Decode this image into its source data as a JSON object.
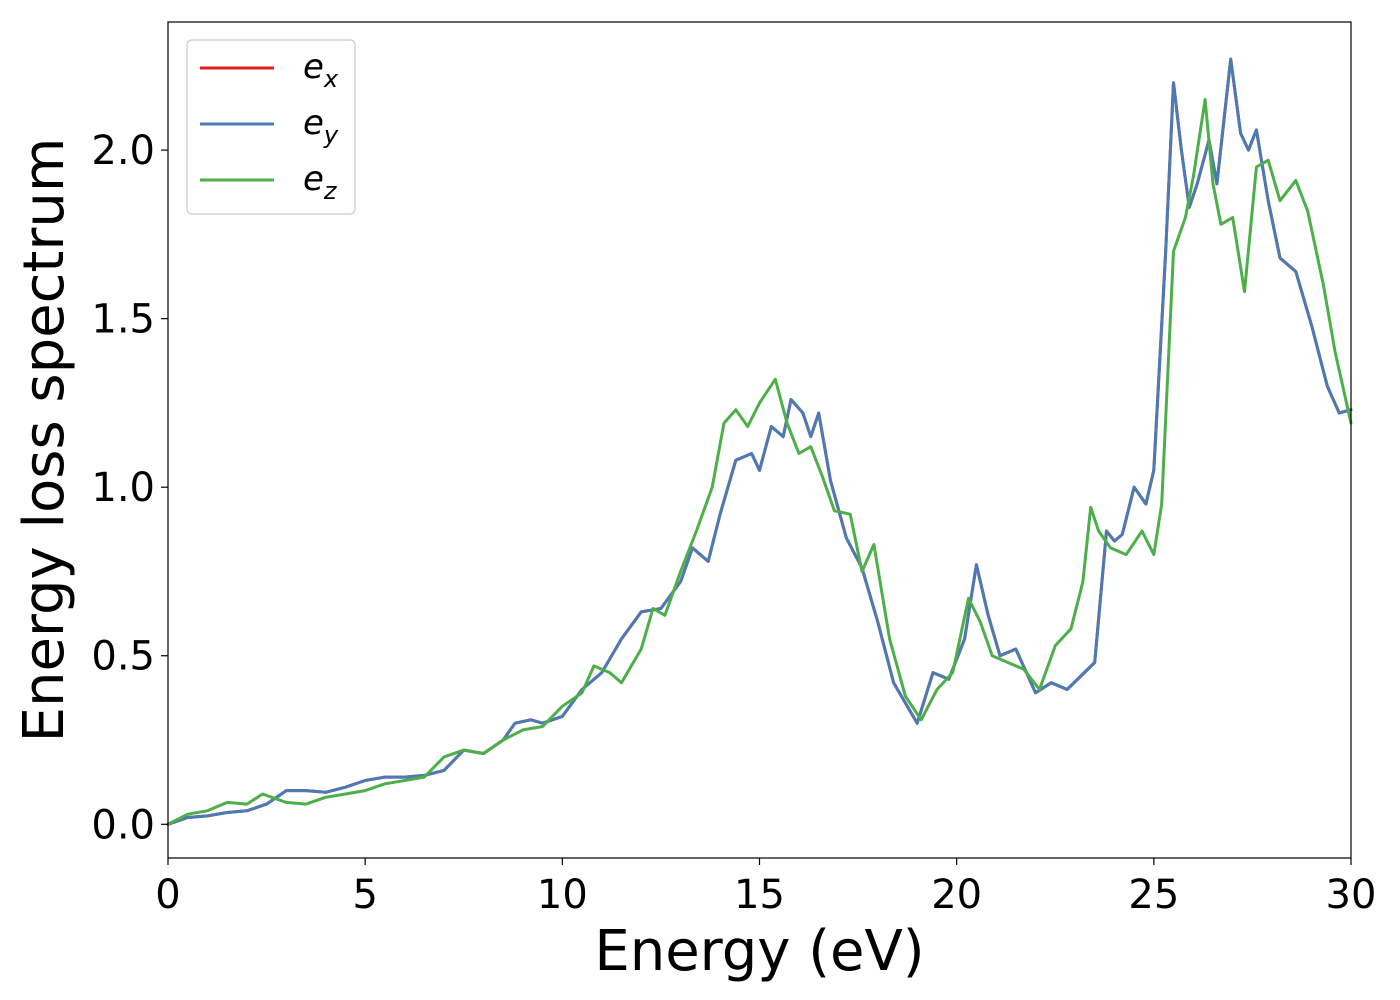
{
  "chart_data": {
    "type": "line",
    "title": "",
    "xlabel": "Energy (eV)",
    "ylabel": "Energy loss spectrum",
    "xlim": [
      0,
      30
    ],
    "ylim": [
      -0.1,
      2.38
    ],
    "xticks": [
      0,
      5,
      10,
      15,
      20,
      25,
      30
    ],
    "xtick_labels": [
      "0",
      "5",
      "10",
      "15",
      "20",
      "25",
      "30"
    ],
    "yticks": [
      0.0,
      0.5,
      1.0,
      1.5,
      2.0
    ],
    "ytick_labels": [
      "0.0",
      "0.5",
      "1.0",
      "1.5",
      "2.0"
    ],
    "grid": false,
    "legend_position": "top-left",
    "series": [
      {
        "name": "e",
        "sub": "x",
        "color": "#e41a1c",
        "points": [
          [
            0,
            0.0
          ],
          [
            0.5,
            0.02
          ],
          [
            1.0,
            0.025
          ],
          [
            1.5,
            0.035
          ],
          [
            2.0,
            0.04
          ],
          [
            2.5,
            0.06
          ],
          [
            3.0,
            0.1
          ],
          [
            3.5,
            0.1
          ],
          [
            4.0,
            0.095
          ],
          [
            4.5,
            0.11
          ],
          [
            5.0,
            0.13
          ],
          [
            5.5,
            0.14
          ],
          [
            6.0,
            0.14
          ],
          [
            6.5,
            0.145
          ],
          [
            7.0,
            0.16
          ],
          [
            7.5,
            0.22
          ],
          [
            8.0,
            0.21
          ],
          [
            8.5,
            0.25
          ],
          [
            8.8,
            0.3
          ],
          [
            9.2,
            0.31
          ],
          [
            9.5,
            0.3
          ],
          [
            10.0,
            0.32
          ],
          [
            10.5,
            0.4
          ],
          [
            11.0,
            0.45
          ],
          [
            11.5,
            0.55
          ],
          [
            12.0,
            0.63
          ],
          [
            12.5,
            0.64
          ],
          [
            13.0,
            0.72
          ],
          [
            13.3,
            0.82
          ],
          [
            13.7,
            0.78
          ],
          [
            14.0,
            0.92
          ],
          [
            14.4,
            1.08
          ],
          [
            14.8,
            1.1
          ],
          [
            15.0,
            1.05
          ],
          [
            15.3,
            1.18
          ],
          [
            15.6,
            1.15
          ],
          [
            15.8,
            1.26
          ],
          [
            16.1,
            1.22
          ],
          [
            16.3,
            1.15
          ],
          [
            16.5,
            1.22
          ],
          [
            16.8,
            1.02
          ],
          [
            17.2,
            0.85
          ],
          [
            17.6,
            0.76
          ],
          [
            18.0,
            0.6
          ],
          [
            18.4,
            0.42
          ],
          [
            19.0,
            0.3
          ],
          [
            19.4,
            0.45
          ],
          [
            19.8,
            0.43
          ],
          [
            20.2,
            0.55
          ],
          [
            20.5,
            0.77
          ],
          [
            20.8,
            0.62
          ],
          [
            21.1,
            0.5
          ],
          [
            21.5,
            0.52
          ],
          [
            22.0,
            0.39
          ],
          [
            22.4,
            0.42
          ],
          [
            22.8,
            0.4
          ],
          [
            23.5,
            0.48
          ],
          [
            23.8,
            0.87
          ],
          [
            24.0,
            0.84
          ],
          [
            24.2,
            0.86
          ],
          [
            24.5,
            1.0
          ],
          [
            24.8,
            0.95
          ],
          [
            25.0,
            1.05
          ],
          [
            25.3,
            1.7
          ],
          [
            25.5,
            2.2
          ],
          [
            25.7,
            2.0
          ],
          [
            25.9,
            1.83
          ],
          [
            26.1,
            1.9
          ],
          [
            26.4,
            2.03
          ],
          [
            26.6,
            1.9
          ],
          [
            26.95,
            2.27
          ],
          [
            27.2,
            2.05
          ],
          [
            27.4,
            2.0
          ],
          [
            27.6,
            2.06
          ],
          [
            27.9,
            1.85
          ],
          [
            28.2,
            1.68
          ],
          [
            28.6,
            1.64
          ],
          [
            29.0,
            1.48
          ],
          [
            29.4,
            1.3
          ],
          [
            29.7,
            1.22
          ],
          [
            30.0,
            1.23
          ]
        ]
      },
      {
        "name": "e",
        "sub": "y",
        "color": "#4a7bb5",
        "points": [
          [
            0,
            0.0
          ],
          [
            0.5,
            0.02
          ],
          [
            1.0,
            0.025
          ],
          [
            1.5,
            0.035
          ],
          [
            2.0,
            0.04
          ],
          [
            2.5,
            0.06
          ],
          [
            3.0,
            0.1
          ],
          [
            3.5,
            0.1
          ],
          [
            4.0,
            0.095
          ],
          [
            4.5,
            0.11
          ],
          [
            5.0,
            0.13
          ],
          [
            5.5,
            0.14
          ],
          [
            6.0,
            0.14
          ],
          [
            6.5,
            0.145
          ],
          [
            7.0,
            0.16
          ],
          [
            7.5,
            0.22
          ],
          [
            8.0,
            0.21
          ],
          [
            8.5,
            0.25
          ],
          [
            8.8,
            0.3
          ],
          [
            9.2,
            0.31
          ],
          [
            9.5,
            0.3
          ],
          [
            10.0,
            0.32
          ],
          [
            10.5,
            0.4
          ],
          [
            11.0,
            0.45
          ],
          [
            11.5,
            0.55
          ],
          [
            12.0,
            0.63
          ],
          [
            12.5,
            0.64
          ],
          [
            13.0,
            0.72
          ],
          [
            13.3,
            0.82
          ],
          [
            13.7,
            0.78
          ],
          [
            14.0,
            0.92
          ],
          [
            14.4,
            1.08
          ],
          [
            14.8,
            1.1
          ],
          [
            15.0,
            1.05
          ],
          [
            15.3,
            1.18
          ],
          [
            15.6,
            1.15
          ],
          [
            15.8,
            1.26
          ],
          [
            16.1,
            1.22
          ],
          [
            16.3,
            1.15
          ],
          [
            16.5,
            1.22
          ],
          [
            16.8,
            1.02
          ],
          [
            17.2,
            0.85
          ],
          [
            17.6,
            0.76
          ],
          [
            18.0,
            0.6
          ],
          [
            18.4,
            0.42
          ],
          [
            19.0,
            0.3
          ],
          [
            19.4,
            0.45
          ],
          [
            19.8,
            0.43
          ],
          [
            20.2,
            0.55
          ],
          [
            20.5,
            0.77
          ],
          [
            20.8,
            0.62
          ],
          [
            21.1,
            0.5
          ],
          [
            21.5,
            0.52
          ],
          [
            22.0,
            0.39
          ],
          [
            22.4,
            0.42
          ],
          [
            22.8,
            0.4
          ],
          [
            23.5,
            0.48
          ],
          [
            23.8,
            0.87
          ],
          [
            24.0,
            0.84
          ],
          [
            24.2,
            0.86
          ],
          [
            24.5,
            1.0
          ],
          [
            24.8,
            0.95
          ],
          [
            25.0,
            1.05
          ],
          [
            25.3,
            1.7
          ],
          [
            25.5,
            2.2
          ],
          [
            25.7,
            2.0
          ],
          [
            25.9,
            1.83
          ],
          [
            26.1,
            1.9
          ],
          [
            26.4,
            2.03
          ],
          [
            26.6,
            1.9
          ],
          [
            26.95,
            2.27
          ],
          [
            27.2,
            2.05
          ],
          [
            27.4,
            2.0
          ],
          [
            27.6,
            2.06
          ],
          [
            27.9,
            1.85
          ],
          [
            28.2,
            1.68
          ],
          [
            28.6,
            1.64
          ],
          [
            29.0,
            1.48
          ],
          [
            29.4,
            1.3
          ],
          [
            29.7,
            1.22
          ],
          [
            30.0,
            1.23
          ]
        ]
      },
      {
        "name": "e",
        "sub": "z",
        "color": "#4daf4a",
        "points": [
          [
            0,
            0.0
          ],
          [
            0.5,
            0.03
          ],
          [
            1.0,
            0.04
          ],
          [
            1.5,
            0.065
          ],
          [
            2.0,
            0.06
          ],
          [
            2.4,
            0.09
          ],
          [
            3.0,
            0.065
          ],
          [
            3.5,
            0.06
          ],
          [
            4.0,
            0.08
          ],
          [
            4.5,
            0.09
          ],
          [
            5.0,
            0.1
          ],
          [
            5.5,
            0.12
          ],
          [
            6.0,
            0.13
          ],
          [
            6.5,
            0.14
          ],
          [
            7.0,
            0.2
          ],
          [
            7.5,
            0.22
          ],
          [
            8.0,
            0.21
          ],
          [
            8.5,
            0.25
          ],
          [
            9.0,
            0.28
          ],
          [
            9.5,
            0.29
          ],
          [
            10.0,
            0.35
          ],
          [
            10.5,
            0.39
          ],
          [
            10.8,
            0.47
          ],
          [
            11.2,
            0.45
          ],
          [
            11.5,
            0.42
          ],
          [
            12.0,
            0.52
          ],
          [
            12.3,
            0.64
          ],
          [
            12.6,
            0.62
          ],
          [
            13.0,
            0.75
          ],
          [
            13.4,
            0.87
          ],
          [
            13.8,
            1.0
          ],
          [
            14.1,
            1.19
          ],
          [
            14.4,
            1.23
          ],
          [
            14.7,
            1.18
          ],
          [
            15.0,
            1.25
          ],
          [
            15.4,
            1.32
          ],
          [
            15.7,
            1.19
          ],
          [
            16.0,
            1.1
          ],
          [
            16.3,
            1.12
          ],
          [
            16.6,
            1.03
          ],
          [
            16.9,
            0.93
          ],
          [
            17.3,
            0.92
          ],
          [
            17.6,
            0.75
          ],
          [
            17.9,
            0.83
          ],
          [
            18.3,
            0.55
          ],
          [
            18.7,
            0.38
          ],
          [
            19.1,
            0.31
          ],
          [
            19.5,
            0.4
          ],
          [
            19.9,
            0.45
          ],
          [
            20.3,
            0.67
          ],
          [
            20.6,
            0.6
          ],
          [
            20.9,
            0.5
          ],
          [
            21.3,
            0.48
          ],
          [
            21.7,
            0.46
          ],
          [
            22.1,
            0.4
          ],
          [
            22.5,
            0.53
          ],
          [
            22.9,
            0.58
          ],
          [
            23.2,
            0.72
          ],
          [
            23.4,
            0.94
          ],
          [
            23.6,
            0.87
          ],
          [
            23.9,
            0.82
          ],
          [
            24.3,
            0.8
          ],
          [
            24.7,
            0.87
          ],
          [
            25.0,
            0.8
          ],
          [
            25.2,
            0.95
          ],
          [
            25.5,
            1.7
          ],
          [
            25.8,
            1.8
          ],
          [
            26.0,
            1.92
          ],
          [
            26.3,
            2.15
          ],
          [
            26.5,
            1.9
          ],
          [
            26.7,
            1.78
          ],
          [
            27.0,
            1.8
          ],
          [
            27.3,
            1.58
          ],
          [
            27.6,
            1.95
          ],
          [
            27.9,
            1.97
          ],
          [
            28.2,
            1.85
          ],
          [
            28.6,
            1.91
          ],
          [
            28.9,
            1.82
          ],
          [
            29.3,
            1.6
          ],
          [
            29.6,
            1.4
          ],
          [
            30.0,
            1.19
          ]
        ]
      }
    ]
  }
}
